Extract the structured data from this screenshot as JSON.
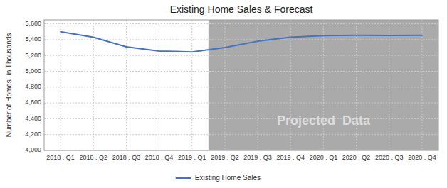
{
  "chart_data": {
    "type": "line",
    "title": "Existing Home Sales & Forecast",
    "y_label": "Number of Homes  in Thousands",
    "categories": [
      "2018 . Q1",
      "2018 . Q2",
      "2018 . Q3",
      "2018 . Q4",
      "2019 . Q1",
      "2019 . Q2",
      "2019 . Q3",
      "2019 . Q4",
      "2020 . Q1",
      "2020 . Q2",
      "2020 . Q3",
      "2020 . Q4"
    ],
    "series": [
      {
        "name": "Existing Home Sales",
        "color": "#4472C4",
        "values": [
          5500,
          5430,
          5310,
          5255,
          5245,
          5300,
          5380,
          5430,
          5450,
          5455,
          5453,
          5455
        ]
      }
    ],
    "ylim": [
      4000,
      5650
    ],
    "yticks": [
      {
        "value": 4000,
        "label": "4,000"
      },
      {
        "value": 4200,
        "label": "4,200"
      },
      {
        "value": 4400,
        "label": "4,400"
      },
      {
        "value": 4600,
        "label": "4,600"
      },
      {
        "value": 4800,
        "label": "4,800"
      },
      {
        "value": 5000,
        "label": "5,000"
      },
      {
        "value": 5200,
        "label": "5,200"
      },
      {
        "value": 5400,
        "label": "5,400"
      },
      {
        "value": 5600,
        "label": "5,600"
      }
    ],
    "shaded_region": {
      "from": "2019 . Q2",
      "to": "2020 . Q4",
      "label": "Projected  Data",
      "color": "#AAAAAA",
      "label_color": "#DDDDDD"
    },
    "grid": true,
    "legend": "bottom"
  }
}
